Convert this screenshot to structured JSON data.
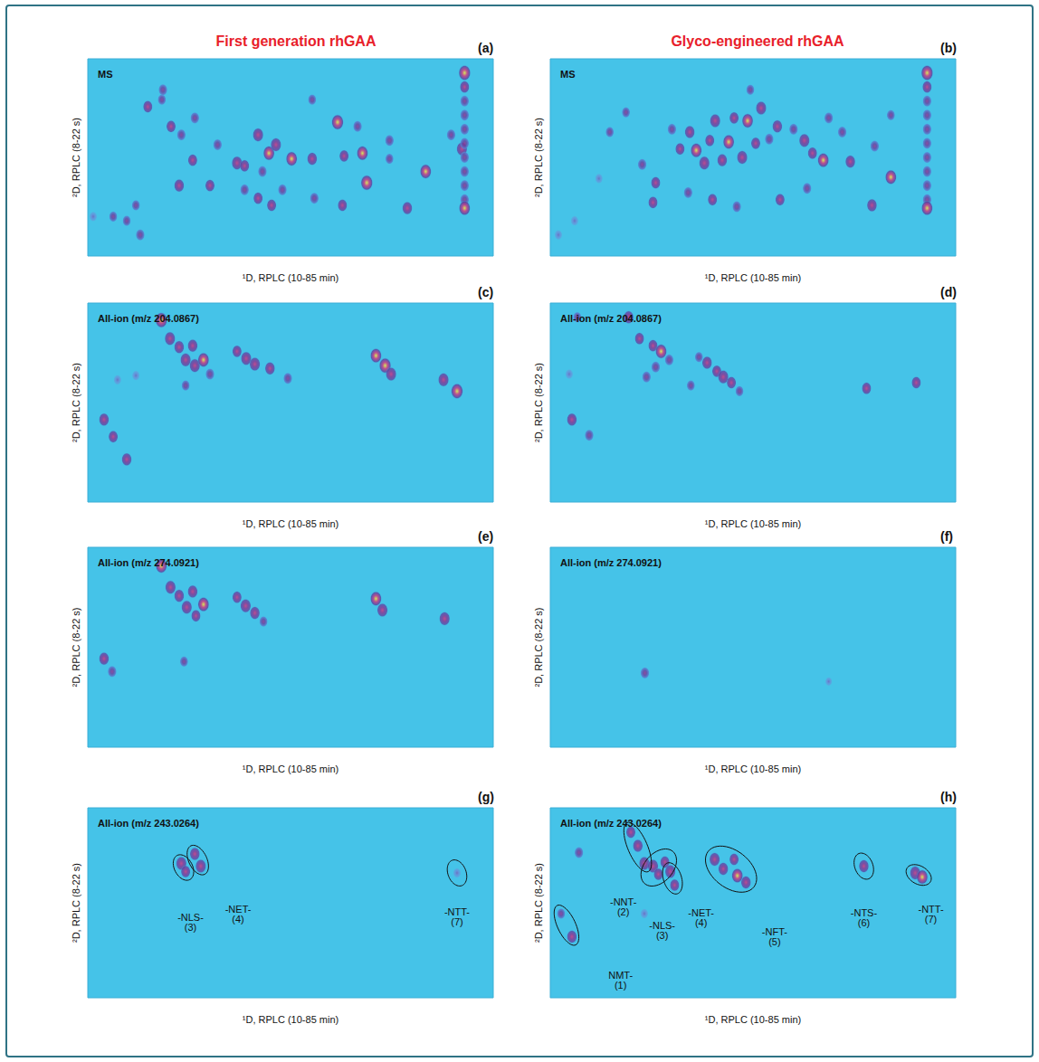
{
  "header": {
    "left": "First generation rhGAA",
    "right": "Glyco-engineered rhGAA"
  },
  "chart_data": [
    {
      "type": "scatter",
      "title": "(a)",
      "subtitle": "MS",
      "x_label": "¹D, RPLC (10-85 min)",
      "y_label": "²D, RPLC (8-22 s)",
      "xlim": [
        10,
        85
      ],
      "ylim": [
        8,
        22
      ],
      "tick_labels": false,
      "grid": false,
      "spots": [
        [
          21.1,
          18.6,
          0.6
        ],
        [
          23.7,
          19.1,
          0.4
        ],
        [
          25.4,
          17.2,
          0.6
        ],
        [
          27.3,
          16.6,
          0.5
        ],
        [
          29.8,
          17.8,
          0.5
        ],
        [
          37.6,
          14.6,
          0.8
        ],
        [
          39.0,
          14.4,
          0.6
        ],
        [
          41.5,
          16.6,
          0.8
        ],
        [
          43.5,
          15.3,
          0.9
        ],
        [
          42.3,
          14.0,
          0.5
        ],
        [
          44.8,
          15.9,
          0.8
        ],
        [
          47.7,
          14.9,
          0.9
        ],
        [
          51.5,
          14.9,
          0.7
        ],
        [
          56.2,
          17.5,
          1.0
        ],
        [
          57.4,
          15.1,
          0.6
        ],
        [
          60.8,
          15.3,
          0.9
        ],
        [
          61.6,
          13.2,
          1.0
        ],
        [
          65.8,
          16.2,
          0.5
        ],
        [
          72.5,
          14.0,
          0.9
        ],
        [
          77.2,
          16.6,
          0.5
        ],
        [
          79.2,
          15.6,
          0.8
        ],
        [
          29.4,
          14.8,
          0.6
        ],
        [
          26.9,
          13.0,
          0.7
        ],
        [
          32.6,
          13.0,
          0.6
        ],
        [
          34.0,
          15.9,
          0.5
        ],
        [
          39.0,
          12.7,
          0.5
        ],
        [
          41.5,
          12.1,
          0.6
        ],
        [
          46.0,
          12.7,
          0.5
        ],
        [
          44.0,
          11.6,
          0.6
        ],
        [
          51.9,
          12.1,
          0.5
        ],
        [
          57.1,
          11.6,
          0.6
        ],
        [
          69.1,
          11.4,
          0.7
        ],
        [
          17.2,
          10.5,
          0.4
        ],
        [
          19.7,
          9.5,
          0.5
        ],
        [
          14.7,
          10.8,
          0.4
        ],
        [
          18.9,
          11.6,
          0.4
        ],
        [
          11.0,
          10.8,
          0.3
        ],
        [
          23.9,
          19.8,
          0.5
        ],
        [
          51.5,
          19.1,
          0.4
        ],
        [
          59.9,
          17.2,
          0.5
        ],
        [
          65.8,
          14.9,
          0.4
        ],
        [
          79.7,
          21.0,
          1.0
        ],
        [
          79.7,
          20.0,
          0.6
        ],
        [
          79.7,
          19.0,
          0.5
        ],
        [
          79.7,
          18.0,
          0.5
        ],
        [
          79.7,
          17.0,
          0.5
        ],
        [
          79.7,
          16.0,
          0.5
        ],
        [
          79.7,
          15.0,
          0.5
        ],
        [
          79.7,
          14.0,
          0.5
        ],
        [
          79.7,
          13.0,
          0.5
        ],
        [
          79.7,
          12.0,
          0.5
        ],
        [
          79.7,
          11.4,
          0.9
        ]
      ],
      "annotations": []
    },
    {
      "type": "scatter",
      "title": "(b)",
      "subtitle": "MS",
      "x_label": "¹D, RPLC (10-85 min)",
      "y_label": "²D, RPLC (8-22 s)",
      "xlim": [
        10,
        85
      ],
      "ylim": [
        8,
        22
      ],
      "tick_labels": false,
      "grid": false,
      "spots": [
        [
          14.5,
          10.5,
          0.3
        ],
        [
          11.5,
          9.5,
          0.3
        ],
        [
          19.0,
          13.5,
          0.3
        ],
        [
          21.0,
          16.8,
          0.4
        ],
        [
          27.0,
          14.5,
          0.5
        ],
        [
          29.5,
          13.2,
          0.6
        ],
        [
          32.5,
          17.0,
          0.5
        ],
        [
          34.0,
          15.6,
          0.6
        ],
        [
          35.8,
          16.8,
          0.7
        ],
        [
          37.0,
          15.5,
          0.9
        ],
        [
          38.5,
          14.6,
          0.8
        ],
        [
          39.5,
          16.2,
          0.6
        ],
        [
          40.5,
          17.6,
          0.8
        ],
        [
          41.8,
          14.8,
          0.7
        ],
        [
          43.0,
          16.1,
          0.9
        ],
        [
          44.0,
          17.8,
          0.6
        ],
        [
          45.5,
          15.0,
          0.8
        ],
        [
          46.5,
          17.6,
          0.9
        ],
        [
          48.0,
          16.0,
          0.6
        ],
        [
          49.0,
          18.5,
          0.8
        ],
        [
          50.5,
          16.3,
          0.5
        ],
        [
          52.0,
          17.2,
          0.7
        ],
        [
          55.0,
          17.0,
          0.5
        ],
        [
          57.0,
          16.2,
          0.8
        ],
        [
          58.5,
          15.3,
          0.6
        ],
        [
          60.5,
          14.8,
          0.9
        ],
        [
          64.0,
          16.8,
          0.5
        ],
        [
          65.5,
          14.7,
          0.7
        ],
        [
          70.0,
          15.8,
          0.5
        ],
        [
          73.0,
          13.6,
          0.9
        ],
        [
          29.0,
          11.8,
          0.6
        ],
        [
          35.5,
          12.5,
          0.5
        ],
        [
          40.0,
          12.0,
          0.6
        ],
        [
          44.5,
          11.5,
          0.5
        ],
        [
          52.5,
          12.0,
          0.6
        ],
        [
          57.5,
          12.8,
          0.5
        ],
        [
          69.5,
          11.6,
          0.7
        ],
        [
          24.0,
          18.2,
          0.4
        ],
        [
          47.0,
          19.8,
          0.4
        ],
        [
          61.5,
          17.8,
          0.5
        ],
        [
          73.0,
          18.0,
          0.4
        ],
        [
          79.7,
          21.0,
          1.0
        ],
        [
          79.7,
          20.0,
          0.6
        ],
        [
          79.7,
          19.0,
          0.5
        ],
        [
          79.7,
          18.0,
          0.5
        ],
        [
          79.7,
          17.0,
          0.5
        ],
        [
          79.7,
          16.0,
          0.5
        ],
        [
          79.7,
          15.0,
          0.5
        ],
        [
          79.7,
          14.0,
          0.5
        ],
        [
          79.7,
          13.0,
          0.5
        ],
        [
          79.7,
          12.0,
          0.5
        ],
        [
          79.7,
          11.4,
          0.9
        ]
      ],
      "annotations": []
    },
    {
      "type": "scatter",
      "title": "(c)",
      "subtitle": "All-ion (m/z 204.0867)",
      "x_label": "¹D, RPLC (10-85 min)",
      "y_label": "²D, RPLC (8-22 s)",
      "xlim": [
        10,
        85
      ],
      "ylim": [
        8,
        22
      ],
      "tick_labels": false,
      "grid": false,
      "spots": [
        [
          23.6,
          20.8,
          1.0
        ],
        [
          25.2,
          19.5,
          0.8
        ],
        [
          26.9,
          18.9,
          0.7
        ],
        [
          28.1,
          18.0,
          0.8
        ],
        [
          29.8,
          17.6,
          0.8
        ],
        [
          29.4,
          19.0,
          0.7
        ],
        [
          31.4,
          18.0,
          0.9
        ],
        [
          32.6,
          17.0,
          0.5
        ],
        [
          37.6,
          18.6,
          0.6
        ],
        [
          39.3,
          18.1,
          0.8
        ],
        [
          40.9,
          17.7,
          0.8
        ],
        [
          43.7,
          17.4,
          0.7
        ],
        [
          47.0,
          16.7,
          0.5
        ],
        [
          63.3,
          18.3,
          0.9
        ],
        [
          65.0,
          17.6,
          1.0
        ],
        [
          66.1,
          17.0,
          0.8
        ],
        [
          75.8,
          16.6,
          0.8
        ],
        [
          78.3,
          15.8,
          1.0
        ],
        [
          13.0,
          13.8,
          0.7
        ],
        [
          14.7,
          12.6,
          0.6
        ],
        [
          17.2,
          11.0,
          0.7
        ],
        [
          15.5,
          16.6,
          0.3
        ],
        [
          18.9,
          16.9,
          0.3
        ],
        [
          28.1,
          16.2,
          0.4
        ]
      ],
      "annotations": []
    },
    {
      "type": "scatter",
      "title": "(d)",
      "subtitle": "All-ion (m/z 204.0867)",
      "x_label": "¹D, RPLC (10-85 min)",
      "y_label": "²D, RPLC (8-22 s)",
      "xlim": [
        10,
        85
      ],
      "ylim": [
        8,
        22
      ],
      "tick_labels": false,
      "grid": false,
      "spots": [
        [
          14.0,
          13.8,
          0.7
        ],
        [
          17.2,
          12.7,
          0.5
        ],
        [
          13.5,
          17.0,
          0.3
        ],
        [
          15.0,
          21.0,
          0.4
        ],
        [
          24.5,
          21.0,
          0.7
        ],
        [
          26.5,
          19.5,
          0.6
        ],
        [
          29.0,
          19.0,
          0.6
        ],
        [
          30.5,
          18.6,
          0.9
        ],
        [
          29.5,
          17.5,
          0.5
        ],
        [
          32.0,
          18.0,
          0.5
        ],
        [
          27.8,
          16.8,
          0.5
        ],
        [
          37.5,
          18.2,
          0.4
        ],
        [
          39.0,
          17.8,
          0.7
        ],
        [
          40.8,
          17.2,
          0.6
        ],
        [
          42.0,
          16.8,
          0.8
        ],
        [
          43.5,
          16.4,
          0.6
        ],
        [
          45.0,
          15.8,
          0.4
        ],
        [
          36.0,
          16.2,
          0.4
        ],
        [
          68.5,
          16.0,
          0.6
        ],
        [
          77.7,
          16.4,
          0.6
        ]
      ],
      "annotations": []
    },
    {
      "type": "scatter",
      "title": "(e)",
      "subtitle": "All-ion (m/z 274.0921)",
      "x_label": "¹D, RPLC (10-85 min)",
      "y_label": "²D, RPLC (8-22 s)",
      "xlim": [
        10,
        85
      ],
      "ylim": [
        8,
        22
      ],
      "tick_labels": false,
      "grid": false,
      "spots": [
        [
          23.6,
          20.7,
          0.9
        ],
        [
          25.3,
          19.2,
          0.8
        ],
        [
          26.9,
          18.6,
          0.7
        ],
        [
          28.3,
          17.8,
          0.8
        ],
        [
          29.4,
          18.9,
          0.7
        ],
        [
          30.0,
          17.2,
          0.6
        ],
        [
          31.4,
          18.0,
          0.9
        ],
        [
          37.6,
          18.5,
          0.6
        ],
        [
          39.2,
          17.9,
          0.8
        ],
        [
          40.9,
          17.4,
          0.7
        ],
        [
          42.5,
          16.8,
          0.4
        ],
        [
          63.3,
          18.4,
          0.9
        ],
        [
          64.5,
          17.6,
          0.8
        ],
        [
          76.0,
          17.0,
          0.8
        ],
        [
          13.0,
          14.2,
          0.7
        ],
        [
          14.5,
          13.3,
          0.5
        ],
        [
          27.8,
          14.0,
          0.4
        ]
      ],
      "annotations": []
    },
    {
      "type": "scatter",
      "title": "(f)",
      "subtitle": "All-ion (m/z 274.0921)",
      "x_label": "¹D, RPLC (10-85 min)",
      "y_label": "²D, RPLC (8-22 s)",
      "xlim": [
        10,
        85
      ],
      "ylim": [
        8,
        22
      ],
      "tick_labels": false,
      "grid": false,
      "spots": [
        [
          27.5,
          13.2,
          0.5
        ],
        [
          61.5,
          12.6,
          0.15
        ]
      ],
      "annotations": []
    },
    {
      "type": "scatter",
      "title": "(g)",
      "subtitle": "All-ion (m/z 243.0264)",
      "x_label": "¹D, RPLC (10-85 min)",
      "y_label": "²D, RPLC (8-22 s)",
      "xlim": [
        10,
        85
      ],
      "ylim": [
        8,
        22
      ],
      "tick_labels": false,
      "grid": false,
      "spots": [],
      "annotations": [
        {
          "text": "-NLS-\n(3)",
          "x": 29.0,
          "y": 13.6,
          "spots": [
            [
              27.3,
              17.9,
              0.8
            ],
            [
              28.1,
              17.3,
              0.6
            ]
          ]
        },
        {
          "text": "-NET-\n(4)",
          "x": 37.8,
          "y": 14.2,
          "spots": [
            [
              29.8,
              18.6,
              0.7
            ],
            [
              30.9,
              17.7,
              0.8
            ]
          ]
        },
        {
          "text": "-NTT-\n(7)",
          "x": 78.3,
          "y": 14.0,
          "spots": [
            [
              78.3,
              17.2,
              0.3
            ]
          ]
        }
      ]
    },
    {
      "type": "scatter",
      "title": "(h)",
      "subtitle": "All-ion (m/z 243.0264)",
      "x_label": "¹D, RPLC (10-85 min)",
      "y_label": "²D, RPLC (8-22 s)",
      "xlim": [
        10,
        85
      ],
      "ylim": [
        8,
        22
      ],
      "tick_labels": false,
      "grid": false,
      "spots": [
        [
          15.3,
          18.7,
          0.5
        ],
        [
          27.4,
          14.2,
          0.3
        ]
      ],
      "annotations": [
        {
          "text": "NMT-\n(1)",
          "x": 23.0,
          "y": 9.3,
          "spots": [
            [
              12.0,
              14.2,
              0.4
            ],
            [
              14.0,
              12.5,
              0.7
            ]
          ]
        },
        {
          "text": "-NNT-\n(2)",
          "x": 23.5,
          "y": 14.7,
          "spots": [
            [
              24.9,
              20.2,
              0.6
            ],
            [
              26.2,
              19.2,
              0.7
            ],
            [
              27.4,
              17.9,
              0.8
            ]
          ]
        },
        {
          "text": "-NLS-\n(3)",
          "x": 30.7,
          "y": 13.0,
          "spots": [
            [
              29.0,
              17.7,
              0.8
            ],
            [
              30.0,
              17.1,
              0.6
            ],
            [
              31.2,
              18.0,
              0.6
            ]
          ]
        },
        {
          "text": "-NET-\n(4)",
          "x": 37.9,
          "y": 13.9,
          "spots": [
            [
              32.2,
              17.3,
              0.8
            ],
            [
              33.0,
              16.3,
              0.6
            ]
          ]
        },
        {
          "text": "-NFT-\n(5)",
          "x": 51.5,
          "y": 12.5,
          "spots": [
            [
              40.4,
              18.2,
              0.8
            ],
            [
              42.0,
              17.5,
              0.7
            ],
            [
              44.6,
              17.0,
              0.9
            ],
            [
              46.2,
              16.5,
              0.7
            ],
            [
              44.0,
              18.2,
              0.6
            ]
          ]
        },
        {
          "text": "-NTS-\n(6)",
          "x": 68.0,
          "y": 13.9,
          "spots": [
            [
              68.0,
              17.7,
              0.7
            ]
          ]
        },
        {
          "text": "-NTT-\n(7)",
          "x": 80.4,
          "y": 14.2,
          "spots": [
            [
              77.5,
              17.2,
              0.8
            ],
            [
              78.8,
              16.9,
              0.9
            ]
          ]
        }
      ]
    }
  ]
}
